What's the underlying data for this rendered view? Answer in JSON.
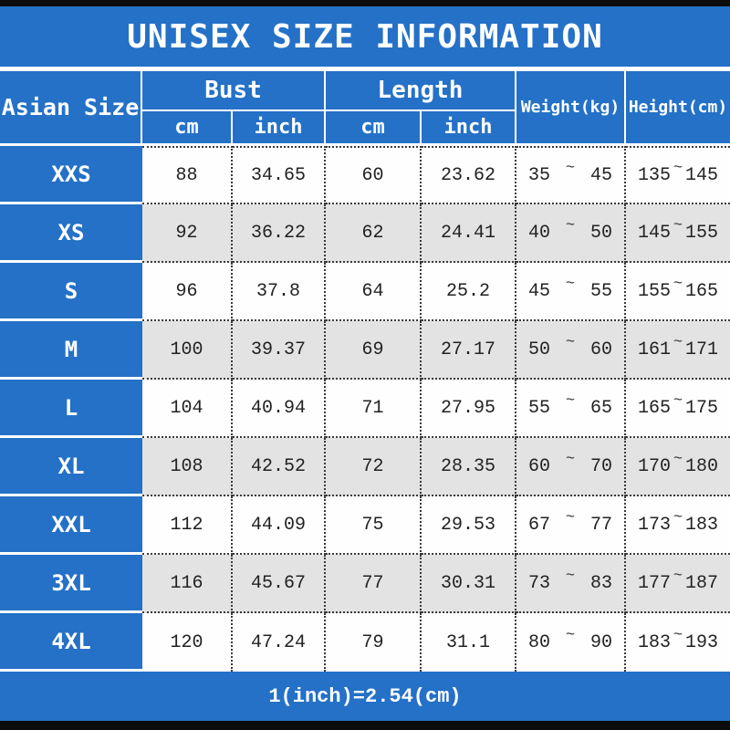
{
  "chart_data": {
    "type": "table",
    "title": "UNISEX SIZE INFORMATION",
    "columns": [
      "Asian Size",
      "Bust cm",
      "Bust inch",
      "Length cm",
      "Length inch",
      "Weight(kg)",
      "Height(cm)"
    ],
    "rows": [
      {
        "size": "XXS",
        "bust_cm": "88",
        "bust_inch": "34.65",
        "length_cm": "60",
        "length_inch": "23.62",
        "weight": [
          "35",
          "45"
        ],
        "height": [
          "135",
          "145"
        ]
      },
      {
        "size": "XS",
        "bust_cm": "92",
        "bust_inch": "36.22",
        "length_cm": "62",
        "length_inch": "24.41",
        "weight": [
          "40",
          "50"
        ],
        "height": [
          "145",
          "155"
        ]
      },
      {
        "size": "S",
        "bust_cm": "96",
        "bust_inch": "37.8",
        "length_cm": "64",
        "length_inch": "25.2",
        "weight": [
          "45",
          "55"
        ],
        "height": [
          "155",
          "165"
        ]
      },
      {
        "size": "M",
        "bust_cm": "100",
        "bust_inch": "39.37",
        "length_cm": "69",
        "length_inch": "27.17",
        "weight": [
          "50",
          "60"
        ],
        "height": [
          "161",
          "171"
        ]
      },
      {
        "size": "L",
        "bust_cm": "104",
        "bust_inch": "40.94",
        "length_cm": "71",
        "length_inch": "27.95",
        "weight": [
          "55",
          "65"
        ],
        "height": [
          "165",
          "175"
        ]
      },
      {
        "size": "XL",
        "bust_cm": "108",
        "bust_inch": "42.52",
        "length_cm": "72",
        "length_inch": "28.35",
        "weight": [
          "60",
          "70"
        ],
        "height": [
          "170",
          "180"
        ]
      },
      {
        "size": "XXL",
        "bust_cm": "112",
        "bust_inch": "44.09",
        "length_cm": "75",
        "length_inch": "29.53",
        "weight": [
          "67",
          "77"
        ],
        "height": [
          "173",
          "183"
        ]
      },
      {
        "size": "3XL",
        "bust_cm": "116",
        "bust_inch": "45.67",
        "length_cm": "77",
        "length_inch": "30.31",
        "weight": [
          "73",
          "83"
        ],
        "height": [
          "177",
          "187"
        ]
      },
      {
        "size": "4XL",
        "bust_cm": "120",
        "bust_inch": "47.24",
        "length_cm": "79",
        "length_inch": "31.1",
        "weight": [
          "80",
          "90"
        ],
        "height": [
          "183",
          "193"
        ]
      }
    ],
    "range_separator": "~",
    "note": "1(inch)=2.54(cm)"
  },
  "header": {
    "size_col": "Asian Size",
    "groups": [
      {
        "label": "Bust",
        "units": [
          "cm",
          "inch"
        ]
      },
      {
        "label": "Length",
        "units": [
          "cm",
          "inch"
        ]
      }
    ],
    "weight": "Weight(kg)",
    "height": "Height(cm)"
  },
  "colors": {
    "blue": "#2471c7",
    "row_white": "#fefefe",
    "row_gray": "#e3e3e3",
    "bar_black": "#0c0c0c",
    "text_dark": "#222222",
    "text_white": "#ffffff",
    "dotted_border": "#3a3a3a"
  }
}
